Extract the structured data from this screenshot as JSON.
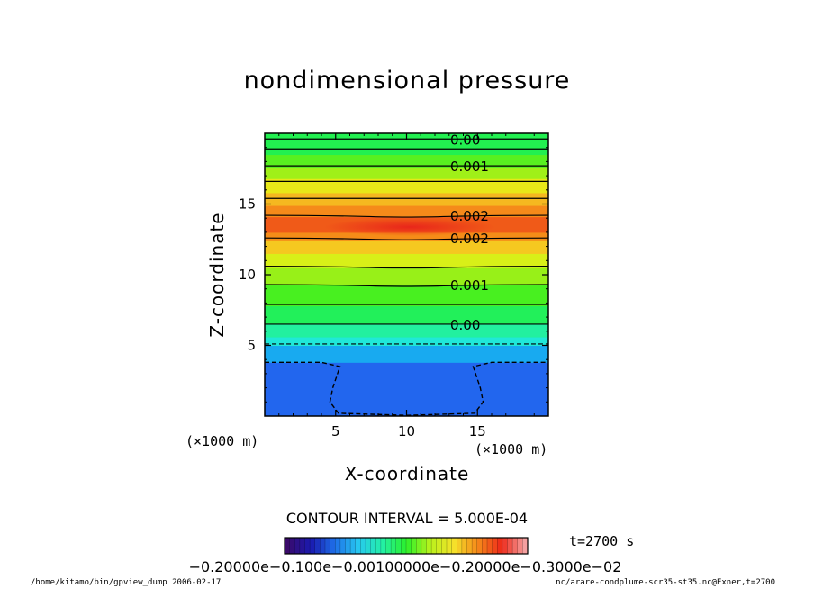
{
  "chart_data": {
    "type": "heatmap",
    "title": "nondimensional pressure",
    "xlabel": "X-coordinate",
    "ylabel": "Z-coordinate",
    "x_unit": "(×1000 m)",
    "y_unit": "(×1000 m)",
    "xlim": [
      0,
      20
    ],
    "ylim": [
      0,
      20
    ],
    "x_ticks": [
      5,
      10,
      15
    ],
    "y_ticks": [
      5,
      10,
      15
    ],
    "contour_interval_text": "CONTOUR INTERVAL = 5.000E-04",
    "time_text": "t=2700 s",
    "colorbar_tick_text": "−0.20000e−0.100e−0.00100000e−0.20000e−0.3000e−02",
    "colorscale": [
      "#3a0a6a",
      "#1a1ab0",
      "#1e6ee8",
      "#27c8f0",
      "#23f0a8",
      "#2bf02b",
      "#b7f21c",
      "#f5e22a",
      "#f58a1a",
      "#ee2a1a",
      "#f5a0a0"
    ],
    "bands": [
      {
        "z0": 0.0,
        "z1": 3.8,
        "color": "#2266ee"
      },
      {
        "z0": 3.8,
        "z1": 5.0,
        "color": "#18aaf0"
      },
      {
        "z0": 5.0,
        "z1": 5.6,
        "color": "#20e8d8"
      },
      {
        "z0": 5.6,
        "z1": 6.5,
        "color": "#22f0a0"
      },
      {
        "z0": 6.5,
        "z1": 7.8,
        "color": "#22f05a"
      },
      {
        "z0": 7.8,
        "z1": 9.3,
        "color": "#48f020"
      },
      {
        "z0": 9.3,
        "z1": 10.5,
        "color": "#98f018"
      },
      {
        "z0": 10.5,
        "z1": 11.5,
        "color": "#d8f018"
      },
      {
        "z0": 11.5,
        "z1": 12.4,
        "color": "#f5c820"
      },
      {
        "z0": 12.4,
        "z1": 13.0,
        "color": "#f58c18"
      },
      {
        "z0": 13.0,
        "z1": 14.1,
        "color": "#f05a18"
      },
      {
        "z0": 14.1,
        "z1": 14.9,
        "color": "#f58a1a"
      },
      {
        "z0": 14.9,
        "z1": 15.8,
        "color": "#f5b820"
      },
      {
        "z0": 15.8,
        "z1": 16.8,
        "color": "#e8e818"
      },
      {
        "z0": 16.8,
        "z1": 17.6,
        "color": "#a0f018"
      },
      {
        "z0": 17.6,
        "z1": 18.5,
        "color": "#58f020"
      },
      {
        "z0": 18.5,
        "z1": 20.0,
        "color": "#22f050"
      }
    ],
    "contours": [
      {
        "z": 19.6,
        "label": "0.00",
        "dashed": false
      },
      {
        "z": 18.9,
        "label": "",
        "dashed": false
      },
      {
        "z": 17.7,
        "label": "0.001",
        "dashed": false
      },
      {
        "z": 16.6,
        "label": "",
        "dashed": false
      },
      {
        "z": 15.4,
        "label": "",
        "dashed": false
      },
      {
        "z": 14.2,
        "label": "0.002",
        "dashed": false
      },
      {
        "z": 12.6,
        "label": "0.002",
        "dashed": false
      },
      {
        "z": 10.6,
        "label": "",
        "dashed": false
      },
      {
        "z": 9.3,
        "label": "0.001",
        "dashed": false
      },
      {
        "z": 7.9,
        "label": "",
        "dashed": false
      },
      {
        "z": 6.5,
        "label": "0.00",
        "dashed": false
      },
      {
        "z": 5.1,
        "label": "",
        "dashed": true
      }
    ],
    "dashed_plume_contour": [
      [
        0.0,
        3.8
      ],
      [
        4.0,
        3.8
      ],
      [
        5.3,
        3.5
      ],
      [
        4.8,
        2.0
      ],
      [
        4.6,
        1.0
      ],
      [
        5.2,
        0.2
      ],
      [
        10.0,
        0.05
      ],
      [
        14.8,
        0.2
      ],
      [
        15.4,
        1.0
      ],
      [
        15.2,
        2.0
      ],
      [
        14.7,
        3.5
      ],
      [
        16.0,
        3.8
      ],
      [
        20.0,
        3.8
      ]
    ]
  },
  "footer": {
    "left_text": "/home/kitamo/bin/gpview_dump   2006-02-17",
    "right_text": "nc/arare-condplume-scr35-st35.nc@Exner,t=2700"
  }
}
